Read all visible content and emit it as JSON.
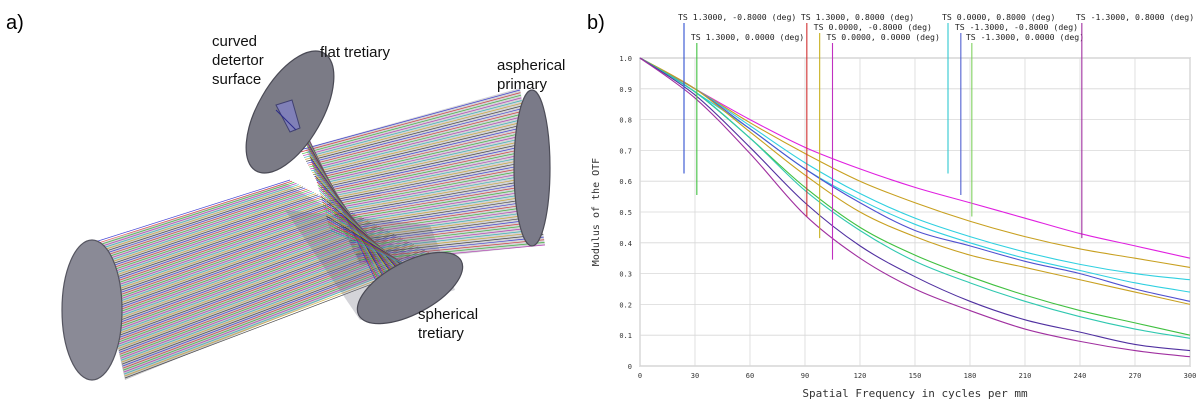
{
  "panel_a": {
    "label": "a)",
    "callouts": {
      "curved_detector": [
        "curved",
        "detertor",
        "surface"
      ],
      "flat_tertiary": [
        "flat tretiary"
      ],
      "aspherical_primary": [
        "aspherical",
        "primary"
      ],
      "spherical_tertiary": [
        "spherical",
        "tretiary"
      ]
    },
    "ray_colors": [
      "#2a2ad0",
      "#d02a2a",
      "#2ab02a",
      "#b02ab0",
      "#20b0b0",
      "#c8a020",
      "#303030"
    ]
  },
  "panel_b": {
    "label": "b)"
  },
  "chart_data": {
    "type": "line",
    "title": "",
    "xlabel": "Spatial Frequency in cycles per mm",
    "ylabel": "Modulus of the OTF",
    "xlim": [
      0,
      300
    ],
    "ylim": [
      0,
      1
    ],
    "xticks": [
      "0",
      "30",
      "60",
      "90",
      "120",
      "150",
      "180",
      "210",
      "240",
      "270",
      "300"
    ],
    "yticks": [
      "0",
      "0.1",
      "0.2",
      "0.3",
      "0.4",
      "0.5",
      "0.6",
      "0.7",
      "0.8",
      "0.9",
      "1.0"
    ],
    "grid": true,
    "legend_labels": [
      {
        "text": "TS 1.3000, -0.8000 (deg)",
        "color": "#3050d0",
        "x": 24
      },
      {
        "text": "TS 1.3000, 0.0000 (deg)",
        "color": "#40c040",
        "x": 31
      },
      {
        "text": "TS 1.3000, 0.8000 (deg)",
        "color": "#d03030",
        "x": 91
      },
      {
        "text": "TS 0.0000, -0.8000 (deg)",
        "color": "#c8b020",
        "x": 98
      },
      {
        "text": "TS 0.0000, 0.0000 (deg)",
        "color": "#c030c0",
        "x": 105
      },
      {
        "text": "TS 0.0000, 0.8000 (deg)",
        "color": "#30c8d0",
        "x": 168
      },
      {
        "text": "TS -1.3000, -0.8000 (deg)",
        "color": "#5060d0",
        "x": 175
      },
      {
        "text": "TS -1.3000, 0.0000 (deg)",
        "color": "#80d060",
        "x": 181
      },
      {
        "text": "TS -1.3000, 0.8000 (deg)",
        "color": "#a030a0",
        "x": 241
      }
    ],
    "x": [
      0,
      30,
      60,
      90,
      120,
      150,
      180,
      210,
      240,
      270,
      300
    ],
    "series": [
      {
        "color": "#e020e0",
        "values": [
          1.0,
          0.9,
          0.8,
          0.71,
          0.64,
          0.58,
          0.53,
          0.48,
          0.43,
          0.39,
          0.35
        ]
      },
      {
        "color": "#c8a020",
        "values": [
          1.0,
          0.9,
          0.79,
          0.69,
          0.6,
          0.53,
          0.47,
          0.42,
          0.38,
          0.35,
          0.32
        ]
      },
      {
        "color": "#30d0e0",
        "values": [
          1.0,
          0.9,
          0.78,
          0.66,
          0.56,
          0.48,
          0.42,
          0.37,
          0.33,
          0.3,
          0.28
        ]
      },
      {
        "color": "#30d0e0",
        "values": [
          1.0,
          0.89,
          0.77,
          0.64,
          0.54,
          0.46,
          0.4,
          0.35,
          0.31,
          0.27,
          0.24
        ]
      },
      {
        "color": "#5050d0",
        "values": [
          1.0,
          0.9,
          0.77,
          0.64,
          0.53,
          0.44,
          0.39,
          0.34,
          0.3,
          0.25,
          0.21
        ]
      },
      {
        "color": "#c8a020",
        "values": [
          1.0,
          0.9,
          0.76,
          0.62,
          0.5,
          0.42,
          0.36,
          0.32,
          0.28,
          0.24,
          0.2
        ]
      },
      {
        "color": "#40c040",
        "values": [
          1.0,
          0.89,
          0.74,
          0.58,
          0.45,
          0.36,
          0.29,
          0.23,
          0.18,
          0.14,
          0.1
        ]
      },
      {
        "color": "#30c8b0",
        "values": [
          1.0,
          0.89,
          0.74,
          0.57,
          0.44,
          0.34,
          0.27,
          0.21,
          0.16,
          0.12,
          0.09
        ]
      },
      {
        "color": "#5030a0",
        "values": [
          1.0,
          0.88,
          0.71,
          0.53,
          0.39,
          0.29,
          0.21,
          0.15,
          0.11,
          0.07,
          0.05
        ]
      },
      {
        "color": "#a030a0",
        "values": [
          1.0,
          0.87,
          0.69,
          0.49,
          0.35,
          0.25,
          0.18,
          0.12,
          0.08,
          0.05,
          0.03
        ]
      }
    ]
  }
}
